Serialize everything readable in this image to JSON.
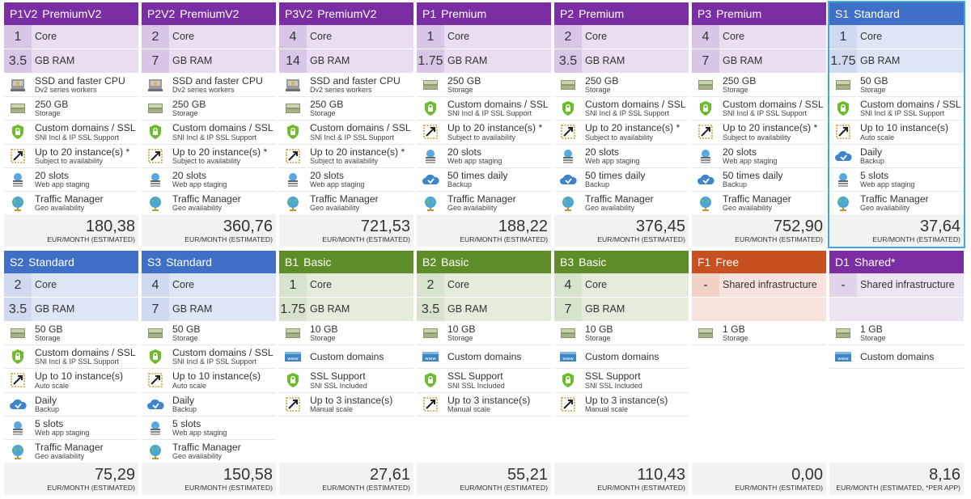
{
  "colors": {
    "premium": "#7b2ea4",
    "standard": "#3f6fc6",
    "basic": "#5e8d28",
    "free": "#c84f1f",
    "shared": "#7b2ea4",
    "selected_outline": "#3fa9e6"
  },
  "tiers": [
    {
      "code": "P1V2",
      "name": "PremiumV2",
      "theme": "premium",
      "selected": false,
      "specs": [
        {
          "num": "1",
          "unit": "Core"
        },
        {
          "num": "3.5",
          "unit": "GB RAM"
        }
      ],
      "features": [
        {
          "icon": "ssd-icon",
          "title": "SSD and faster CPU",
          "sub": "Dv2 series workers"
        },
        {
          "icon": "storage-icon",
          "title": "250 GB",
          "sub": "Storage"
        },
        {
          "icon": "ssl-shield-icon",
          "title": "Custom domains / SSL",
          "sub": "SNI Incl & IP SSL Support"
        },
        {
          "icon": "scale-icon",
          "title": "Up to 20 instance(s) *",
          "sub": "Subject to availability"
        },
        {
          "icon": "slots-icon",
          "title": "20 slots",
          "sub": "Web app staging"
        },
        {
          "icon": "globe-icon",
          "title": "Traffic Manager",
          "sub": "Geo availability"
        }
      ],
      "price": "180,38",
      "price_note": "EUR/MONTH (ESTIMATED)"
    },
    {
      "code": "P2V2",
      "name": "PremiumV2",
      "theme": "premium",
      "selected": false,
      "specs": [
        {
          "num": "2",
          "unit": "Core"
        },
        {
          "num": "7",
          "unit": "GB RAM"
        }
      ],
      "features": [
        {
          "icon": "ssd-icon",
          "title": "SSD and faster CPU",
          "sub": "Dv2 series workers"
        },
        {
          "icon": "storage-icon",
          "title": "250 GB",
          "sub": "Storage"
        },
        {
          "icon": "ssl-shield-icon",
          "title": "Custom domains / SSL",
          "sub": "SNI Incl & IP SSL Support"
        },
        {
          "icon": "scale-icon",
          "title": "Up to 20 instance(s) *",
          "sub": "Subject to availability"
        },
        {
          "icon": "slots-icon",
          "title": "20 slots",
          "sub": "Web app staging"
        },
        {
          "icon": "globe-icon",
          "title": "Traffic Manager",
          "sub": "Geo availability"
        }
      ],
      "price": "360,76",
      "price_note": "EUR/MONTH (ESTIMATED)"
    },
    {
      "code": "P3V2",
      "name": "PremiumV2",
      "theme": "premium",
      "selected": false,
      "specs": [
        {
          "num": "4",
          "unit": "Core"
        },
        {
          "num": "14",
          "unit": "GB RAM"
        }
      ],
      "features": [
        {
          "icon": "ssd-icon",
          "title": "SSD and faster CPU",
          "sub": "Dv2 series workers"
        },
        {
          "icon": "storage-icon",
          "title": "250 GB",
          "sub": "Storage"
        },
        {
          "icon": "ssl-shield-icon",
          "title": "Custom domains / SSL",
          "sub": "SNI Incl & IP SSL Support"
        },
        {
          "icon": "scale-icon",
          "title": "Up to 20 instance(s) *",
          "sub": "Subject to availability"
        },
        {
          "icon": "slots-icon",
          "title": "20 slots",
          "sub": "Web app staging"
        },
        {
          "icon": "globe-icon",
          "title": "Traffic Manager",
          "sub": "Geo availability"
        }
      ],
      "price": "721,53",
      "price_note": "EUR/MONTH (ESTIMATED)"
    },
    {
      "code": "P1",
      "name": "Premium",
      "theme": "premium",
      "selected": false,
      "specs": [
        {
          "num": "1",
          "unit": "Core"
        },
        {
          "num": "1.75",
          "unit": "GB RAM"
        }
      ],
      "features": [
        {
          "icon": "storage-icon",
          "title": "250 GB",
          "sub": "Storage"
        },
        {
          "icon": "ssl-shield-icon",
          "title": "Custom domains / SSL",
          "sub": "SNI Incl & IP SSL Support"
        },
        {
          "icon": "scale-icon",
          "title": "Up to 20 instance(s) *",
          "sub": "Subject to availability"
        },
        {
          "icon": "slots-icon",
          "title": "20 slots",
          "sub": "Web app staging"
        },
        {
          "icon": "backup-cloud-icon",
          "title": "50 times daily",
          "sub": "Backup"
        },
        {
          "icon": "globe-icon",
          "title": "Traffic Manager",
          "sub": "Geo availability"
        }
      ],
      "price": "188,22",
      "price_note": "EUR/MONTH (ESTIMATED)"
    },
    {
      "code": "P2",
      "name": "Premium",
      "theme": "premium",
      "selected": false,
      "specs": [
        {
          "num": "2",
          "unit": "Core"
        },
        {
          "num": "3.5",
          "unit": "GB RAM"
        }
      ],
      "features": [
        {
          "icon": "storage-icon",
          "title": "250 GB",
          "sub": "Storage"
        },
        {
          "icon": "ssl-shield-icon",
          "title": "Custom domains / SSL",
          "sub": "SNI Incl & IP SSL Support"
        },
        {
          "icon": "scale-icon",
          "title": "Up to 20 instance(s) *",
          "sub": "Subject to availability"
        },
        {
          "icon": "slots-icon",
          "title": "20 slots",
          "sub": "Web app staging"
        },
        {
          "icon": "backup-cloud-icon",
          "title": "50 times daily",
          "sub": "Backup"
        },
        {
          "icon": "globe-icon",
          "title": "Traffic Manager",
          "sub": "Geo availability"
        }
      ],
      "price": "376,45",
      "price_note": "EUR/MONTH (ESTIMATED)"
    },
    {
      "code": "P3",
      "name": "Premium",
      "theme": "premium",
      "selected": false,
      "specs": [
        {
          "num": "4",
          "unit": "Core"
        },
        {
          "num": "7",
          "unit": "GB RAM"
        }
      ],
      "features": [
        {
          "icon": "storage-icon",
          "title": "250 GB",
          "sub": "Storage"
        },
        {
          "icon": "ssl-shield-icon",
          "title": "Custom domains / SSL",
          "sub": "SNI Incl & IP SSL Support"
        },
        {
          "icon": "scale-icon",
          "title": "Up to 20 instance(s) *",
          "sub": "Subject to availability"
        },
        {
          "icon": "slots-icon",
          "title": "20 slots",
          "sub": "Web app staging"
        },
        {
          "icon": "backup-cloud-icon",
          "title": "50 times daily",
          "sub": "Backup"
        },
        {
          "icon": "globe-icon",
          "title": "Traffic Manager",
          "sub": "Geo availability"
        }
      ],
      "price": "752,90",
      "price_note": "EUR/MONTH (ESTIMATED)"
    },
    {
      "code": "S1",
      "name": "Standard",
      "theme": "standard",
      "selected": true,
      "specs": [
        {
          "num": "1",
          "unit": "Core"
        },
        {
          "num": "1.75",
          "unit": "GB RAM"
        }
      ],
      "features": [
        {
          "icon": "storage-icon",
          "title": "50 GB",
          "sub": "Storage"
        },
        {
          "icon": "ssl-shield-icon",
          "title": "Custom domains / SSL",
          "sub": "SNI Incl & IP SSL Support"
        },
        {
          "icon": "scale-icon",
          "title": "Up to 10 instance(s)",
          "sub": "Auto scale"
        },
        {
          "icon": "backup-cloud-icon",
          "title": "Daily",
          "sub": "Backup"
        },
        {
          "icon": "slots-icon",
          "title": "5 slots",
          "sub": "Web app staging"
        },
        {
          "icon": "globe-icon",
          "title": "Traffic Manager",
          "sub": "Geo availability"
        }
      ],
      "price": "37,64",
      "price_note": "EUR/MONTH (ESTIMATED)"
    },
    {
      "code": "S2",
      "name": "Standard",
      "theme": "standard",
      "selected": false,
      "specs": [
        {
          "num": "2",
          "unit": "Core"
        },
        {
          "num": "3.5",
          "unit": "GB RAM"
        }
      ],
      "features": [
        {
          "icon": "storage-icon",
          "title": "50 GB",
          "sub": "Storage"
        },
        {
          "icon": "ssl-shield-icon",
          "title": "Custom domains / SSL",
          "sub": "SNI Incl & IP SSL Support"
        },
        {
          "icon": "scale-icon",
          "title": "Up to 10 instance(s)",
          "sub": "Auto scale"
        },
        {
          "icon": "backup-cloud-icon",
          "title": "Daily",
          "sub": "Backup"
        },
        {
          "icon": "slots-icon",
          "title": "5 slots",
          "sub": "Web app staging"
        },
        {
          "icon": "globe-icon",
          "title": "Traffic Manager",
          "sub": "Geo availability"
        }
      ],
      "price": "75,29",
      "price_note": "EUR/MONTH (ESTIMATED)"
    },
    {
      "code": "S3",
      "name": "Standard",
      "theme": "standard",
      "selected": false,
      "specs": [
        {
          "num": "4",
          "unit": "Core"
        },
        {
          "num": "7",
          "unit": "GB RAM"
        }
      ],
      "features": [
        {
          "icon": "storage-icon",
          "title": "50 GB",
          "sub": "Storage"
        },
        {
          "icon": "ssl-shield-icon",
          "title": "Custom domains / SSL",
          "sub": "SNI Incl & IP SSL Support"
        },
        {
          "icon": "scale-icon",
          "title": "Up to 10 instance(s)",
          "sub": "Auto scale"
        },
        {
          "icon": "backup-cloud-icon",
          "title": "Daily",
          "sub": "Backup"
        },
        {
          "icon": "slots-icon",
          "title": "5 slots",
          "sub": "Web app staging"
        },
        {
          "icon": "globe-icon",
          "title": "Traffic Manager",
          "sub": "Geo availability"
        }
      ],
      "price": "150,58",
      "price_note": "EUR/MONTH (ESTIMATED)"
    },
    {
      "code": "B1",
      "name": "Basic",
      "theme": "basic",
      "selected": false,
      "specs": [
        {
          "num": "1",
          "unit": "Core"
        },
        {
          "num": "1.75",
          "unit": "GB RAM"
        }
      ],
      "features": [
        {
          "icon": "storage-icon",
          "title": "10 GB",
          "sub": "Storage"
        },
        {
          "icon": "www-icon",
          "title": "Custom domains",
          "sub": ""
        },
        {
          "icon": "ssl-shield-icon",
          "title": "SSL Support",
          "sub": "SNI SSL Included"
        },
        {
          "icon": "scale-icon",
          "title": "Up to 3 instance(s)",
          "sub": "Manual scale"
        }
      ],
      "price": "27,61",
      "price_note": "EUR/MONTH (ESTIMATED)"
    },
    {
      "code": "B2",
      "name": "Basic",
      "theme": "basic",
      "selected": false,
      "specs": [
        {
          "num": "2",
          "unit": "Core"
        },
        {
          "num": "3.5",
          "unit": "GB RAM"
        }
      ],
      "features": [
        {
          "icon": "storage-icon",
          "title": "10 GB",
          "sub": "Storage"
        },
        {
          "icon": "www-icon",
          "title": "Custom domains",
          "sub": ""
        },
        {
          "icon": "ssl-shield-icon",
          "title": "SSL Support",
          "sub": "SNI SSL Included"
        },
        {
          "icon": "scale-icon",
          "title": "Up to 3 instance(s)",
          "sub": "Manual scale"
        }
      ],
      "price": "55,21",
      "price_note": "EUR/MONTH (ESTIMATED)"
    },
    {
      "code": "B3",
      "name": "Basic",
      "theme": "basic",
      "selected": false,
      "specs": [
        {
          "num": "4",
          "unit": "Core"
        },
        {
          "num": "7",
          "unit": "GB RAM"
        }
      ],
      "features": [
        {
          "icon": "storage-icon",
          "title": "10 GB",
          "sub": "Storage"
        },
        {
          "icon": "www-icon",
          "title": "Custom domains",
          "sub": ""
        },
        {
          "icon": "ssl-shield-icon",
          "title": "SSL Support",
          "sub": "SNI SSL Included"
        },
        {
          "icon": "scale-icon",
          "title": "Up to 3 instance(s)",
          "sub": "Manual scale"
        }
      ],
      "price": "110,43",
      "price_note": "EUR/MONTH (ESTIMATED)"
    },
    {
      "code": "F1",
      "name": "Free",
      "theme": "free",
      "selected": false,
      "specs": [
        {
          "num": "-",
          "unit": "Shared infrastructure"
        },
        {
          "num": "",
          "unit": ""
        }
      ],
      "features": [
        {
          "icon": "storage-icon",
          "title": "1 GB",
          "sub": "Storage"
        }
      ],
      "price": "0,00",
      "price_note": "EUR/MONTH (ESTIMATED)"
    },
    {
      "code": "D1",
      "name": "Shared*",
      "theme": "shared",
      "selected": false,
      "specs": [
        {
          "num": "-",
          "unit": "Shared infrastructure"
        },
        {
          "num": "",
          "unit": ""
        }
      ],
      "features": [
        {
          "icon": "storage-icon",
          "title": "1 GB",
          "sub": "Storage"
        },
        {
          "icon": "www-icon",
          "title": "Custom domains",
          "sub": ""
        }
      ],
      "price": "8,16",
      "price_note": "EUR/MONTH (ESTIMATED, *PER APP)"
    }
  ]
}
